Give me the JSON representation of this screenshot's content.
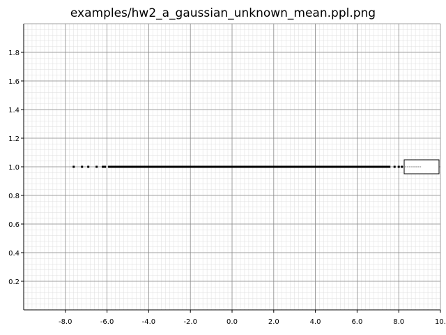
{
  "chart_data": {
    "type": "scatter",
    "title": "examples/hw2_a_gaussian_unknown_mean.ppl.png",
    "xlabel": "",
    "ylabel": "",
    "xlim": [
      -10.0,
      10.0
    ],
    "ylim": [
      0.0,
      2.0
    ],
    "x_ticks": [
      -8.0,
      -6.0,
      -4.0,
      -2.0,
      0.0,
      2.0,
      4.0,
      6.0,
      8.0,
      10.0
    ],
    "x_tick_labels": [
      "-8.0",
      "-6.0",
      "-4.0",
      "-2.0",
      "0.0",
      "2.0",
      "4.0",
      "6.0",
      "8.0",
      "10."
    ],
    "y_ticks": [
      0.2,
      0.4,
      0.6,
      0.8,
      1.0,
      1.2,
      1.4,
      1.6,
      1.8
    ],
    "y_tick_labels": [
      "0.2",
      "0.4",
      "0.6",
      "0.8",
      "1.0",
      "1.2",
      "1.4",
      "1.6",
      "1.8"
    ],
    "grid": true,
    "minor_grid": true,
    "legend": "right",
    "series": [
      {
        "color": "#000000",
        "points_x": [
          -7.6,
          -7.2,
          -6.9,
          -6.5,
          -6.2,
          -6.1,
          -5.9
        ],
        "dense_segment": [
          -5.9,
          7.6
        ],
        "points_y_value": 1.0,
        "tail_x": [
          7.8,
          8.0,
          8.15
        ]
      }
    ],
    "legend_samples": [
      {
        "color": "#bbbbbb",
        "x": [
          8.3,
          9.1
        ],
        "y": 1.0
      }
    ]
  }
}
